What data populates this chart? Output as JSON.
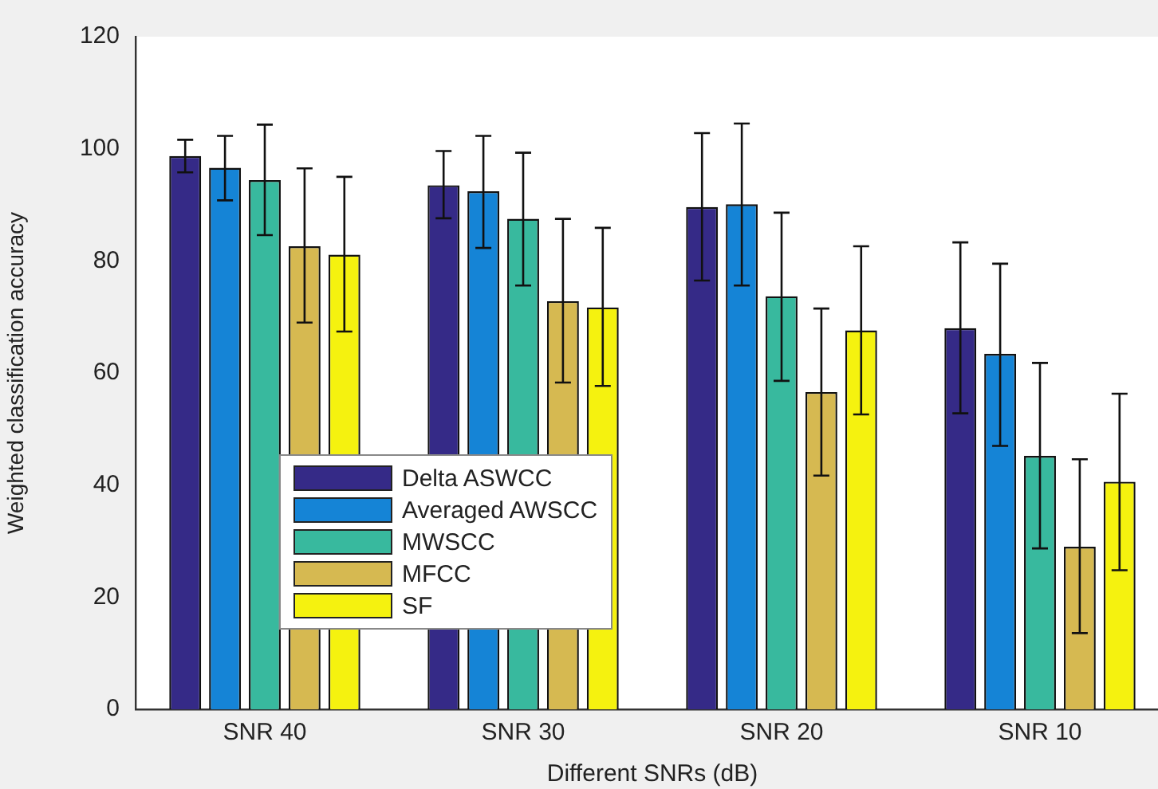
{
  "chart_data": {
    "type": "bar",
    "xlabel": "Different SNRs (dB)",
    "ylabel": "Weighted classification accuracy",
    "categories": [
      "SNR 40",
      "SNR 30",
      "SNR 20",
      "SNR 10"
    ],
    "ylim": [
      0,
      120
    ],
    "yticks": [
      0,
      20,
      40,
      60,
      80,
      100,
      120
    ],
    "grid": false,
    "legend": "bottom left",
    "series": [
      {
        "name": "Delta ASWCC",
        "color": "#352a87",
        "values": [
          98.7,
          93.5,
          89.6,
          68.0
        ],
        "errors": [
          [
            95.8,
            101.6
          ],
          [
            87.6,
            99.6
          ],
          [
            76.5,
            102.8
          ],
          [
            52.8,
            83.3
          ]
        ]
      },
      {
        "name": "Averaged AWSCC",
        "color": "#1584d6",
        "values": [
          96.6,
          92.4,
          90.1,
          63.4
        ],
        "errors": [
          [
            90.8,
            102.3
          ],
          [
            82.3,
            102.3
          ],
          [
            75.6,
            104.5
          ],
          [
            47.0,
            79.5
          ]
        ]
      },
      {
        "name": "MWSCC",
        "color": "#38b99e",
        "values": [
          94.4,
          87.5,
          73.7,
          45.2
        ],
        "errors": [
          [
            84.6,
            104.3
          ],
          [
            75.6,
            99.3
          ],
          [
            58.6,
            88.6
          ],
          [
            28.7,
            61.8
          ]
        ]
      },
      {
        "name": "MFCC",
        "color": "#d6b951",
        "values": [
          82.6,
          72.8,
          56.6,
          29.0
        ],
        "errors": [
          [
            69.0,
            96.5
          ],
          [
            58.3,
            87.5
          ],
          [
            41.7,
            71.5
          ],
          [
            13.6,
            44.6
          ]
        ]
      },
      {
        "name": "SF",
        "color": "#f5f20f",
        "values": [
          81.1,
          71.7,
          67.6,
          40.6
        ],
        "errors": [
          [
            67.4,
            95.0
          ],
          [
            57.7,
            85.9
          ],
          [
            52.6,
            82.6
          ],
          [
            24.8,
            56.3
          ]
        ]
      }
    ]
  }
}
